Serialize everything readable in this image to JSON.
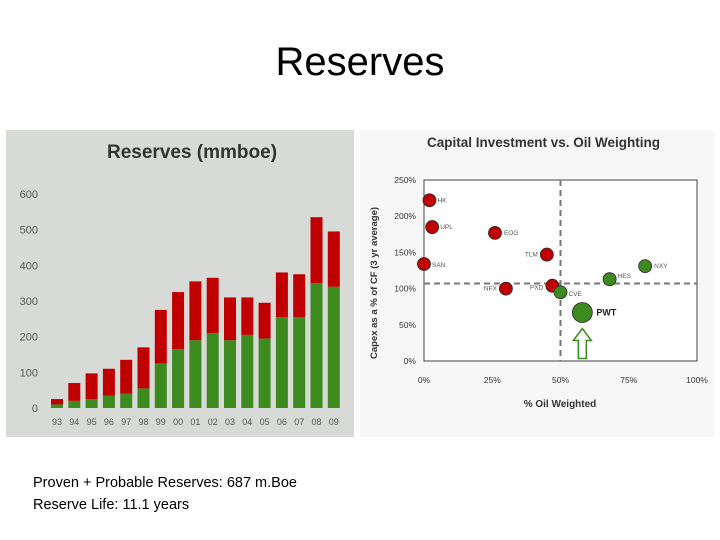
{
  "slide": {
    "title": "Reserves",
    "captions": [
      "Proven + Probable Reserves: 687 m.Boe",
      "Reserve Life: 11.1 years"
    ]
  },
  "chart_data": [
    {
      "type": "bar",
      "title": "Reserves (mmboe)",
      "categories": [
        "93",
        "94",
        "95",
        "96",
        "97",
        "98",
        "99",
        "00",
        "01",
        "02",
        "03",
        "04",
        "05",
        "06",
        "07",
        "08",
        "09"
      ],
      "stacked": true,
      "series": [
        {
          "color": "#3d8a1e",
          "values": [
            10,
            20,
            25,
            35,
            40,
            55,
            125,
            165,
            190,
            210,
            190,
            205,
            195,
            255,
            255,
            350,
            340
          ]
        },
        {
          "color": "#c00000",
          "values": [
            15,
            50,
            72,
            75,
            95,
            115,
            150,
            160,
            165,
            155,
            120,
            105,
            100,
            125,
            120,
            185,
            155
          ]
        }
      ],
      "yticks": [
        0,
        100,
        200,
        300,
        400,
        500,
        600
      ],
      "ylim": [
        0,
        600
      ],
      "grid": false
    },
    {
      "type": "scatter",
      "title": "Capital Investment vs. Oil Weighting",
      "xlabel": "% Oil Weighted",
      "ylabel": "Capex as a % of CF (3 yr average)",
      "xlim": [
        0,
        100
      ],
      "ylim": [
        0,
        250
      ],
      "xticks": [
        "0%",
        "25%",
        "50%",
        "75%",
        "100%"
      ],
      "yticks": [
        "0%",
        "50%",
        "100%",
        "150%",
        "200%",
        "250%"
      ],
      "reference_lines": {
        "x": 50,
        "y": 107
      },
      "points": [
        {
          "label": "HK",
          "x": 2,
          "y": 222,
          "color": "#c00000"
        },
        {
          "label": "UPL",
          "x": 3,
          "y": 185,
          "color": "#c00000"
        },
        {
          "label": "EOG",
          "x": 26,
          "y": 177,
          "color": "#c00000"
        },
        {
          "label": "SAN",
          "x": 0,
          "y": 134,
          "color": "#c00000"
        },
        {
          "label": "TLM",
          "x": 45,
          "y": 147,
          "color": "#c00000"
        },
        {
          "label": "NFX",
          "x": 30,
          "y": 100,
          "color": "#c00000"
        },
        {
          "label": "PXD",
          "x": 47,
          "y": 104,
          "color": "#c00000"
        },
        {
          "label": "CVE",
          "x": 50,
          "y": 95,
          "color": "#3d8a1e"
        },
        {
          "label": "PWT",
          "x": 58,
          "y": 67,
          "color": "#3d8a1e"
        },
        {
          "label": "HES",
          "x": 68,
          "y": 113,
          "color": "#3d8a1e"
        },
        {
          "label": "NXY",
          "x": 81,
          "y": 131,
          "color": "#3d8a1e"
        }
      ],
      "annotations": [
        {
          "type": "up-arrow",
          "target": "PWT"
        }
      ]
    }
  ]
}
